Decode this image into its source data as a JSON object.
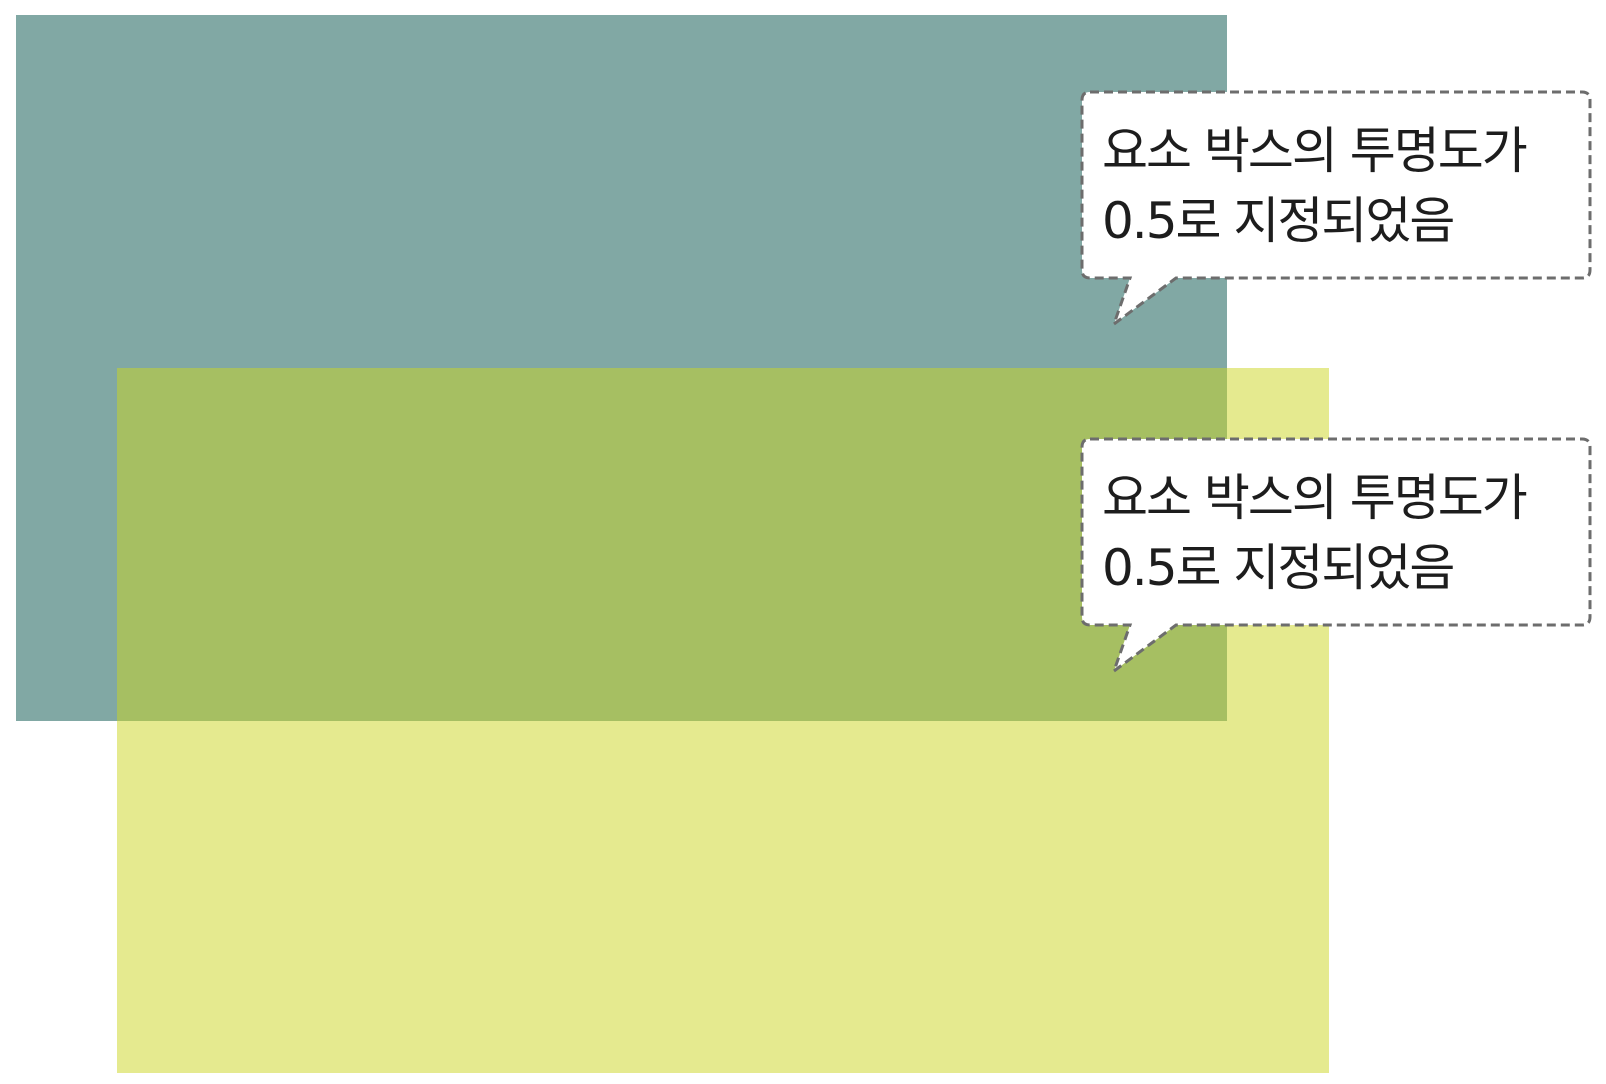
{
  "boxes": {
    "teal_color": "#04514A",
    "yellow_color": "#CCD520",
    "opacity": 0.5
  },
  "callouts": [
    {
      "line1": "요소 박스의 투명도가",
      "line2": "0.5로 지정되었음"
    },
    {
      "line1": "요소 박스의 투명도가",
      "line2": "0.5로 지정되었음"
    }
  ],
  "callout_style": {
    "border_color": "#6d6d6d",
    "fill_color": "#ffffff"
  }
}
